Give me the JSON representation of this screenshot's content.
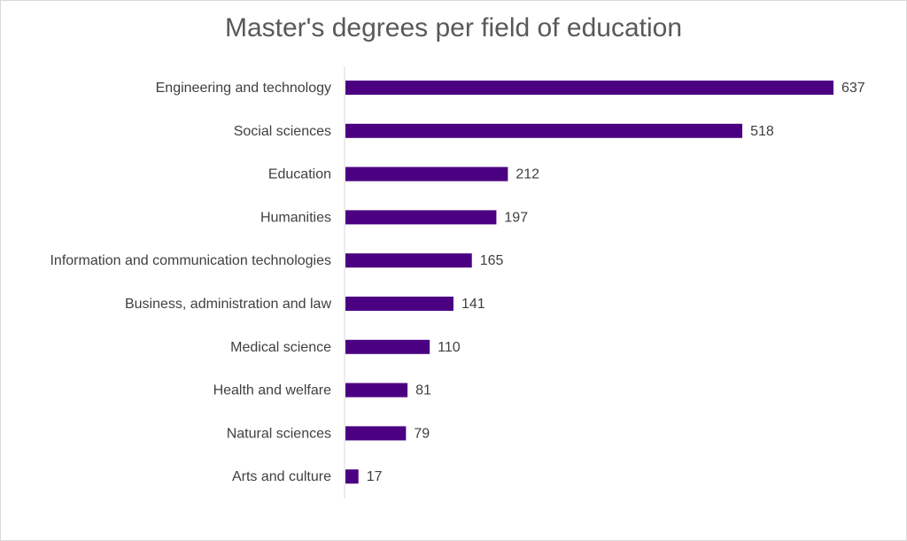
{
  "chart_data": {
    "type": "bar",
    "orientation": "horizontal",
    "title": "Master's degrees per field of education",
    "categories": [
      "Engineering and technology",
      "Social sciences",
      "Education",
      "Humanities",
      "Information and communication technologies",
      "Business, administration and law",
      "Medical science",
      "Health and welfare",
      "Natural sciences",
      "Arts and culture"
    ],
    "values": [
      637,
      518,
      212,
      197,
      165,
      141,
      110,
      81,
      79,
      17
    ],
    "data_labels": true,
    "grid": false,
    "legend": "none",
    "bar_color": "#4b0082"
  }
}
